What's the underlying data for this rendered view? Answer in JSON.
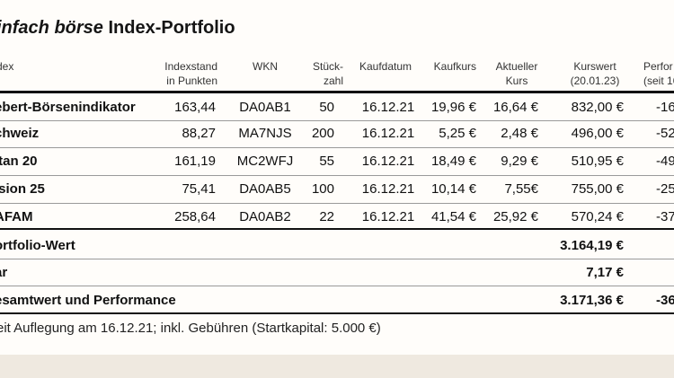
{
  "title": {
    "brand": "infach börse",
    "rest": " Index-Portfolio"
  },
  "columns": {
    "index": "dex",
    "indexstand": [
      "Indexstand",
      "in Punkten"
    ],
    "wkn": "WKN",
    "stueck": [
      "Stück-",
      "zahl"
    ],
    "kaufdatum": "Kaufdatum",
    "kaufkurs": "Kaufkurs",
    "aktueller": [
      "Aktueller",
      "Kurs"
    ],
    "kurswert": [
      "Kurswert",
      "(20.01.23)"
    ],
    "perf": [
      "Perfor",
      "(seit 16"
    ]
  },
  "rows": [
    {
      "name": "ebert-Börsenindikator",
      "indexstand": "163,44",
      "wkn": "DA0AB1",
      "stueck": "50",
      "kaufdatum": "16.12.21",
      "kaufkurs": "19,96 €",
      "kurs": "16,64 €",
      "kurswert": "832,00 €",
      "perf": "-16"
    },
    {
      "name": "chweiz",
      "indexstand": "88,27",
      "wkn": "MA7NJS",
      "stueck": "200",
      "kaufdatum": "16.12.21",
      "kaufkurs": "5,25 €",
      "kurs": "2,48 €",
      "kurswert": "496,00 €",
      "perf": "-52"
    },
    {
      "name": "itan 20",
      "indexstand": "161,19",
      "wkn": "MC2WFJ",
      "stueck": "55",
      "kaufdatum": "16.12.21",
      "kaufkurs": "18,49 €",
      "kurs": "9,29 €",
      "kurswert": "510,95 €",
      "perf": "-49"
    },
    {
      "name": "ision 25",
      "indexstand": "75,41",
      "wkn": "DA0AB5",
      "stueck": "100",
      "kaufdatum": "16.12.21",
      "kaufkurs": "10,14 €",
      "kurs": "7,55€",
      "kurswert": "755,00 €",
      "perf": "-25"
    },
    {
      "name": "AFAM",
      "indexstand": "258,64",
      "wkn": "DA0AB2",
      "stueck": "22",
      "kaufdatum": "16.12.21",
      "kaufkurs": "41,54 €",
      "kurs": "25,92 €",
      "kurswert": "570,24 €",
      "perf": "-37"
    }
  ],
  "summary": [
    {
      "label": "ortfolio-Wert",
      "value": "3.164,19 €",
      "perf": ""
    },
    {
      "label": "ar",
      "value": "7,17 €",
      "perf": ""
    },
    {
      "label": "esamtwert und Performance",
      "value": "3.171,36 €",
      "perf": "-36"
    }
  ],
  "footnote": "eit Auflegung am 16.12.21; inkl. Gebühren (Startkapital: 5.000 €)"
}
